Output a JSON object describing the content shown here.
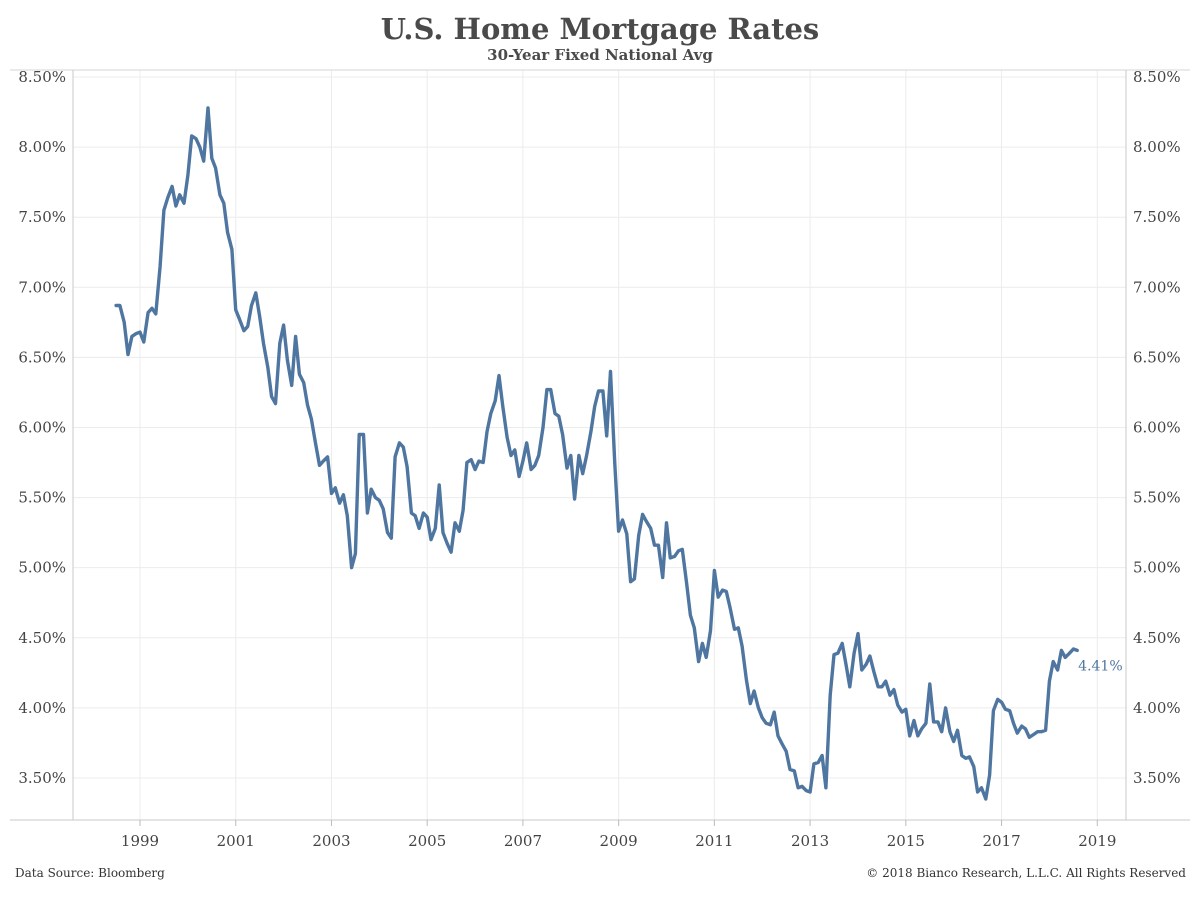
{
  "chart_data": {
    "type": "line",
    "title": "U.S. Home Mortgage Rates",
    "subtitle": "30-Year Fixed National Avg",
    "source": "Data Source: Bloomberg",
    "copyright": "© 2018 Bianco Research, L.L.C. All Rights Reserved",
    "x_range": [
      1997.6,
      2019.6
    ],
    "y_range": [
      3.2,
      8.55
    ],
    "x_ticks": [
      "1999",
      "2001",
      "2003",
      "2005",
      "2007",
      "2009",
      "2011",
      "2013",
      "2015",
      "2017",
      "2019"
    ],
    "y_ticks": [
      "3.50%",
      "4.00%",
      "4.50%",
      "5.00%",
      "5.50%",
      "6.00%",
      "6.50%",
      "7.00%",
      "7.50%",
      "8.00%",
      "8.50%"
    ],
    "grid": true,
    "line_color": "#4e76a0",
    "end_label": "4.41%",
    "series": [
      {
        "x": [
          1998.5,
          1998.58,
          1998.67,
          1998.75,
          1998.83,
          1998.92,
          1999.0,
          1999.08,
          1999.17,
          1999.25,
          1999.33,
          1999.42,
          1999.5,
          1999.58,
          1999.67,
          1999.75,
          1999.83,
          1999.92,
          2000.0,
          2000.08,
          2000.17,
          2000.25,
          2000.33,
          2000.42,
          2000.5,
          2000.58,
          2000.67,
          2000.75,
          2000.83,
          2000.92,
          2001.0,
          2001.08,
          2001.17,
          2001.25,
          2001.33,
          2001.42,
          2001.5,
          2001.58,
          2001.67,
          2001.75,
          2001.83,
          2001.92,
          2002.0,
          2002.08,
          2002.17,
          2002.25,
          2002.33,
          2002.42,
          2002.5,
          2002.58,
          2002.67,
          2002.75,
          2002.83,
          2002.92,
          2003.0,
          2003.08,
          2003.17,
          2003.25,
          2003.33,
          2003.42,
          2003.5,
          2003.58,
          2003.67,
          2003.75,
          2003.83,
          2003.92,
          2004.0,
          2004.08,
          2004.17,
          2004.25,
          2004.33,
          2004.42,
          2004.5,
          2004.58,
          2004.67,
          2004.75,
          2004.83,
          2004.92,
          2005.0,
          2005.08,
          2005.17,
          2005.25,
          2005.33,
          2005.42,
          2005.5,
          2005.58,
          2005.67,
          2005.75,
          2005.83,
          2005.92,
          2006.0,
          2006.08,
          2006.17,
          2006.25,
          2006.33,
          2006.42,
          2006.5,
          2006.58,
          2006.67,
          2006.75,
          2006.83,
          2006.92,
          2007.0,
          2007.08,
          2007.17,
          2007.25,
          2007.33,
          2007.42,
          2007.5,
          2007.58,
          2007.67,
          2007.75,
          2007.83,
          2007.92,
          2008.0,
          2008.08,
          2008.17,
          2008.25,
          2008.33,
          2008.42,
          2008.5,
          2008.58,
          2008.67,
          2008.75,
          2008.83,
          2008.92,
          2009.0,
          2009.08,
          2009.17,
          2009.25,
          2009.33,
          2009.42,
          2009.5,
          2009.58,
          2009.67,
          2009.75,
          2009.83,
          2009.92,
          2010.0,
          2010.08,
          2010.17,
          2010.25,
          2010.33,
          2010.42,
          2010.5,
          2010.58,
          2010.67,
          2010.75,
          2010.83,
          2010.92,
          2011.0,
          2011.08,
          2011.17,
          2011.25,
          2011.33,
          2011.42,
          2011.5,
          2011.58,
          2011.67,
          2011.75,
          2011.83,
          2011.92,
          2012.0,
          2012.08,
          2012.17,
          2012.25,
          2012.33,
          2012.42,
          2012.5,
          2012.58,
          2012.67,
          2012.75,
          2012.83,
          2012.92,
          2013.0,
          2013.08,
          2013.17,
          2013.25,
          2013.33,
          2013.42,
          2013.5,
          2013.58,
          2013.67,
          2013.75,
          2013.83,
          2013.92,
          2014.0,
          2014.08,
          2014.17,
          2014.25,
          2014.33,
          2014.42,
          2014.5,
          2014.58,
          2014.67,
          2014.75,
          2014.83,
          2014.92,
          2015.0,
          2015.08,
          2015.17,
          2015.25,
          2015.33,
          2015.42,
          2015.5,
          2015.58,
          2015.67,
          2015.75,
          2015.83,
          2015.92,
          2016.0,
          2016.08,
          2016.17,
          2016.25,
          2016.33,
          2016.42,
          2016.5,
          2016.58,
          2016.67,
          2016.75,
          2016.83,
          2016.92,
          2017.0,
          2017.08,
          2017.17,
          2017.25,
          2017.33,
          2017.42,
          2017.5,
          2017.58,
          2017.67,
          2017.75,
          2017.83,
          2017.92,
          2018.0,
          2018.08,
          2018.17,
          2018.25,
          2018.33,
          2018.42,
          2018.5,
          2018.58
        ],
        "values": [
          6.87,
          6.87,
          6.75,
          6.52,
          6.65,
          6.67,
          6.68,
          6.61,
          6.82,
          6.85,
          6.81,
          7.15,
          7.55,
          7.64,
          7.72,
          7.58,
          7.66,
          7.6,
          7.8,
          8.08,
          8.06,
          8.0,
          7.9,
          8.28,
          7.92,
          7.85,
          7.66,
          7.6,
          7.39,
          7.27,
          6.84,
          6.77,
          6.69,
          6.72,
          6.87,
          6.96,
          6.79,
          6.6,
          6.43,
          6.22,
          6.17,
          6.6,
          6.73,
          6.48,
          6.3,
          6.65,
          6.38,
          6.32,
          6.16,
          6.06,
          5.88,
          5.73,
          5.76,
          5.79,
          5.53,
          5.57,
          5.46,
          5.52,
          5.37,
          5.0,
          5.1,
          5.95,
          5.95,
          5.39,
          5.56,
          5.5,
          5.48,
          5.42,
          5.25,
          5.21,
          5.79,
          5.89,
          5.86,
          5.72,
          5.39,
          5.37,
          5.28,
          5.39,
          5.36,
          5.2,
          5.28,
          5.59,
          5.25,
          5.17,
          5.11,
          5.32,
          5.26,
          5.41,
          5.75,
          5.77,
          5.7,
          5.76,
          5.75,
          5.97,
          6.1,
          6.19,
          6.37,
          6.15,
          5.93,
          5.8,
          5.84,
          5.65,
          5.76,
          5.89,
          5.7,
          5.73,
          5.8,
          6.0,
          6.27,
          6.27,
          6.1,
          6.08,
          5.95,
          5.71,
          5.8,
          5.49,
          5.8,
          5.67,
          5.8,
          5.97,
          6.15,
          6.26,
          6.26,
          5.94,
          6.4,
          5.74,
          5.26,
          5.34,
          5.24,
          4.9,
          4.92,
          5.23,
          5.38,
          5.33,
          5.28,
          5.16,
          5.16,
          4.93,
          5.32,
          5.07,
          5.08,
          5.12,
          5.13,
          4.89,
          4.66,
          4.57,
          4.33,
          4.46,
          4.36,
          4.55,
          4.98,
          4.79,
          4.84,
          4.83,
          4.71,
          4.56,
          4.57,
          4.44,
          4.2,
          4.03,
          4.12,
          4.0,
          3.93,
          3.89,
          3.88,
          3.97,
          3.8,
          3.74,
          3.69,
          3.56,
          3.55,
          3.43,
          3.44,
          3.41,
          3.4,
          3.6,
          3.61,
          3.66,
          3.43,
          4.09,
          4.38,
          4.39,
          4.46,
          4.31,
          4.15,
          4.39,
          4.53,
          4.27,
          4.31,
          4.37,
          4.26,
          4.15,
          4.15,
          4.19,
          4.09,
          4.13,
          4.02,
          3.97,
          3.99,
          3.8,
          3.91,
          3.8,
          3.85,
          3.89,
          4.17,
          3.9,
          3.9,
          3.83,
          4.0,
          3.83,
          3.76,
          3.84,
          3.66,
          3.64,
          3.65,
          3.58,
          3.4,
          3.43,
          3.35,
          3.52,
          3.98,
          4.06,
          4.04,
          3.99,
          3.98,
          3.89,
          3.82,
          3.87,
          3.85,
          3.79,
          3.81,
          3.83,
          3.83,
          3.84,
          4.19,
          4.33,
          4.27,
          4.41,
          4.36,
          4.39,
          4.42,
          4.41
        ]
      }
    ]
  }
}
